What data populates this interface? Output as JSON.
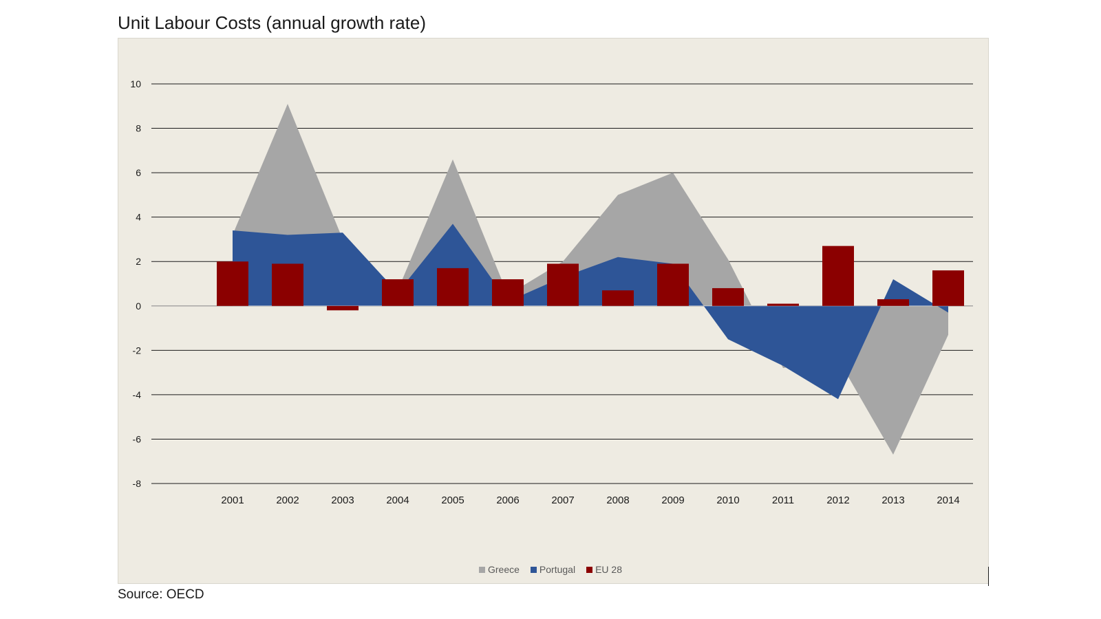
{
  "title": "Unit Labour Costs (annual growth rate)",
  "source": "Source: OECD",
  "chart_data": {
    "type": "area",
    "title": "Unit Labour Costs (annual growth rate)",
    "xlabel": "",
    "ylabel": "",
    "categories": [
      "2001",
      "2002",
      "2003",
      "2004",
      "2005",
      "2006",
      "2007",
      "2008",
      "2009",
      "2010",
      "2011",
      "2012",
      "2013",
      "2014"
    ],
    "ylim": [
      -8,
      10
    ],
    "yticks": [
      10,
      8,
      6,
      4,
      2,
      0,
      -2,
      -4,
      -6,
      -8
    ],
    "grid": true,
    "legend_position": "bottom",
    "series": [
      {
        "name": "Greece",
        "type": "area",
        "color": "#a6a6a6",
        "values": [
          3.2,
          9.1,
          3.0,
          0.7,
          6.6,
          0.5,
          2.0,
          5.0,
          6.0,
          2.1,
          -2.8,
          -2.4,
          -6.7,
          -1.3
        ]
      },
      {
        "name": "Portugal",
        "type": "area",
        "color": "#2e5597",
        "values": [
          3.4,
          3.2,
          3.3,
          0.6,
          3.7,
          0.2,
          1.3,
          2.2,
          1.9,
          -1.5,
          -2.7,
          -4.2,
          1.2,
          -0.3
        ]
      },
      {
        "name": "EU 28",
        "type": "bar",
        "color": "#8b0000",
        "values": [
          2.0,
          1.9,
          -0.2,
          1.2,
          1.7,
          1.2,
          1.9,
          0.7,
          1.9,
          0.8,
          0.1,
          2.7,
          0.3,
          1.6
        ]
      }
    ]
  }
}
